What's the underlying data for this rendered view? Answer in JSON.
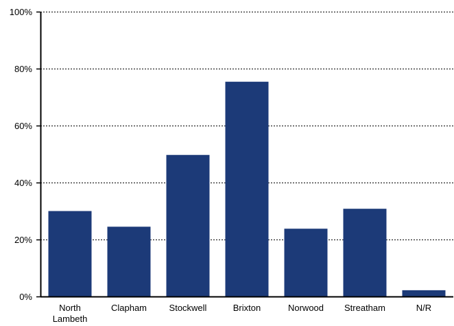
{
  "chart_data": {
    "type": "bar",
    "title": "",
    "xlabel": "",
    "ylabel": "",
    "categories": [
      [
        "North",
        "Lambeth"
      ],
      [
        "Clapham"
      ],
      [
        "Stockwell"
      ],
      [
        "Brixton"
      ],
      [
        "Norwood"
      ],
      [
        "Streatham"
      ],
      [
        "N/R"
      ]
    ],
    "values": [
      30,
      24.5,
      49.7,
      75.4,
      23.8,
      30.8,
      2.2
    ],
    "ylim": [
      0,
      100
    ],
    "yticks": [
      0,
      20,
      40,
      60,
      80,
      100
    ],
    "ytick_labels": [
      "0%",
      "20%",
      "40%",
      "60%",
      "80%",
      "100%"
    ],
    "grid": "horizontal dotted",
    "legend": "none",
    "colors": {
      "bar": "#1c3a78",
      "axis": "#000000",
      "grid": "#000000"
    }
  }
}
